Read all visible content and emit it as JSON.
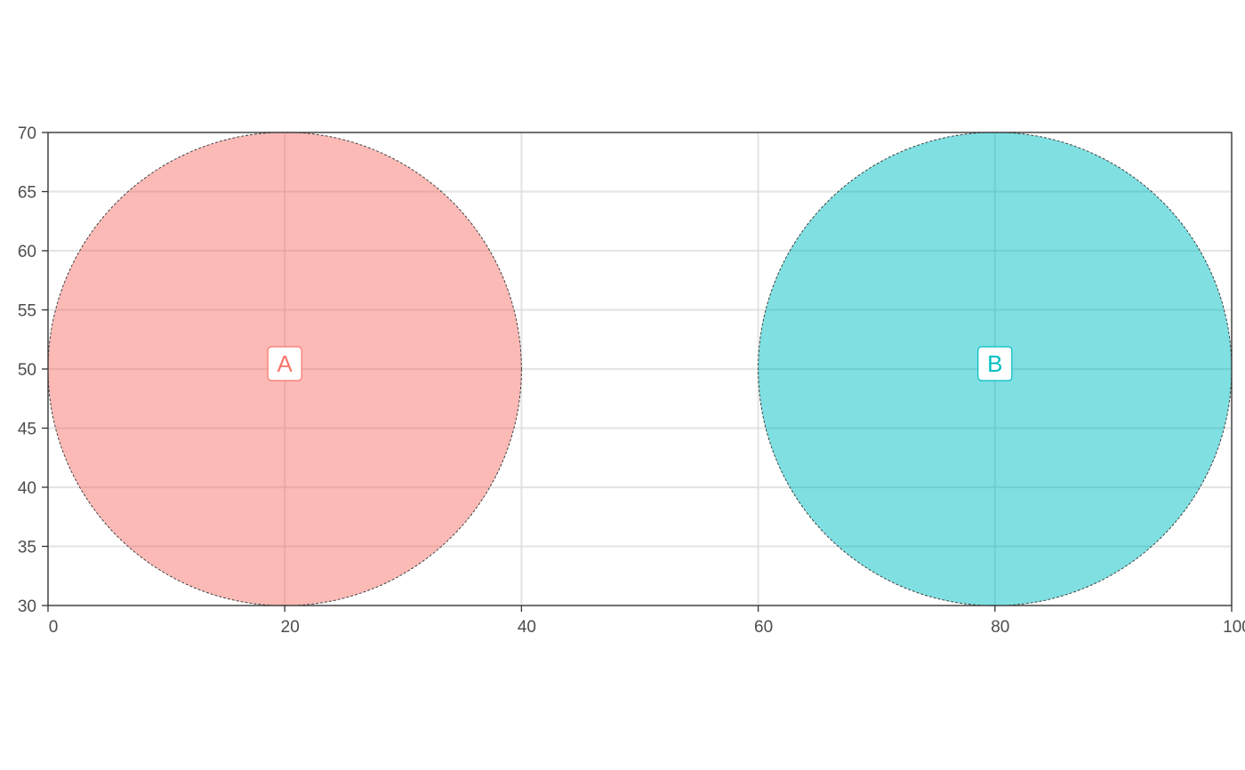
{
  "chart_data": {
    "type": "scatter",
    "title": "",
    "xlabel": "",
    "ylabel": "",
    "xlim": [
      0,
      100
    ],
    "ylim": [
      30,
      70
    ],
    "x_ticks": [
      0,
      20,
      40,
      60,
      80,
      100
    ],
    "y_ticks": [
      30,
      35,
      40,
      45,
      50,
      55,
      60,
      65,
      70
    ],
    "grid": true,
    "legend": "none",
    "circles": [
      {
        "label": "A",
        "x": 20,
        "y": 50,
        "radius": 20,
        "fill": "#F8766D",
        "text_color": "#F8766D",
        "opacity": 0.5
      },
      {
        "label": "B",
        "x": 80,
        "y": 50,
        "radius": 20,
        "fill": "#00BFC4",
        "text_color": "#00BFC4",
        "opacity": 0.5
      }
    ]
  }
}
